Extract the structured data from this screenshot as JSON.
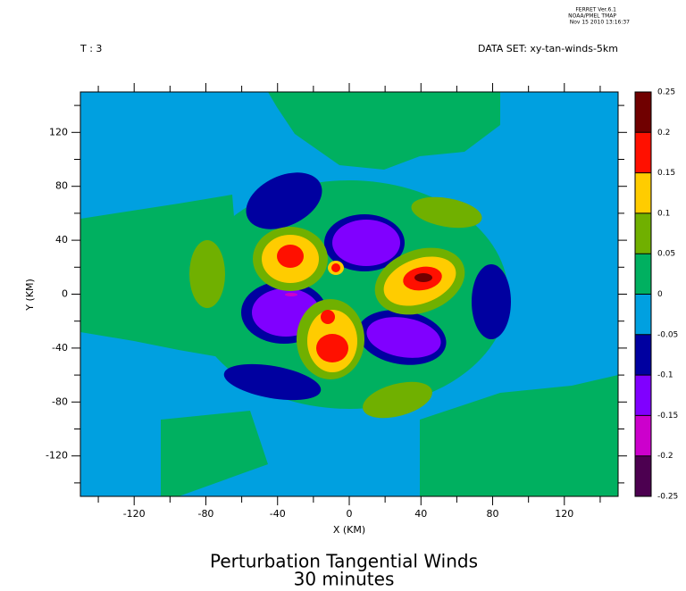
{
  "chart_data": {
    "type": "contour",
    "program": [
      "FERRET Ver.6.1",
      "NOAA/PMEL TMAP",
      "Nov 15 2010 13:16:37"
    ],
    "time_label": "T : 3",
    "dataset_label": "DATA SET: xy-tan-winds-5km",
    "title": "Perturbation Tangential Winds",
    "subtitle": "30 minutes",
    "x_label": "X (KM)",
    "y_label": "Y (KM)",
    "xlim": [
      -150,
      150
    ],
    "xticks": [
      -120,
      -80,
      -40,
      0,
      40,
      80,
      120
    ],
    "ylim": [
      -150,
      150
    ],
    "yticks": [
      -120,
      -80,
      -40,
      0,
      40,
      80,
      120
    ],
    "levels": [
      -0.25,
      -0.2,
      -0.15,
      -0.1,
      -0.05,
      0,
      0.05,
      0.1,
      0.15,
      0.2,
      0.25
    ],
    "colors": [
      "#4c0050",
      "#cc00cc",
      "#8000ff",
      "#0000a0",
      "#00a0e0",
      "#00b060",
      "#70b000",
      "#ffcc00",
      "#ff1000",
      "#700000"
    ]
  }
}
